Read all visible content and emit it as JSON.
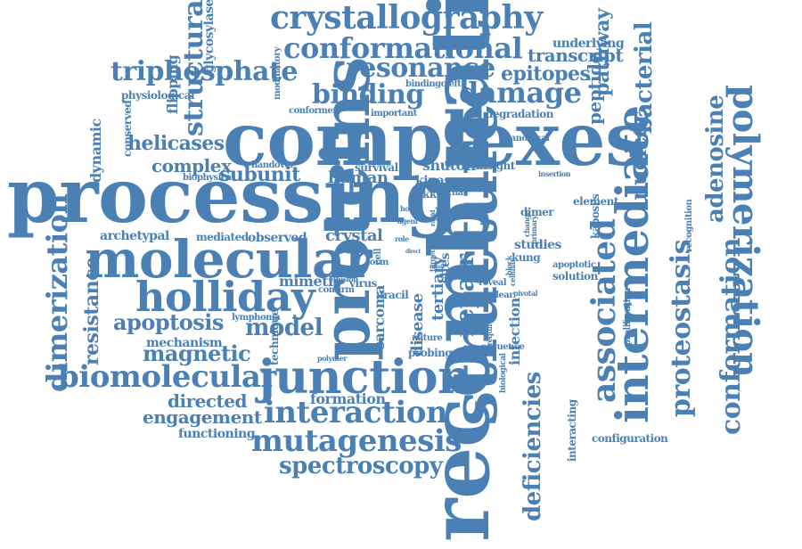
{
  "color": "#4a80b4",
  "words": [
    {
      "id": "recombination",
      "text": "recombination",
      "rot": "up",
      "weight": 10
    },
    {
      "id": "processing",
      "text": "processing",
      "rot": "h",
      "weight": 9
    },
    {
      "id": "complexes",
      "text": "complexes",
      "rot": "h",
      "weight": 9
    },
    {
      "id": "proteins",
      "text": "proteins",
      "rot": "up",
      "weight": 8
    },
    {
      "id": "structure",
      "text": "structure",
      "rot": "up",
      "weight": 8
    },
    {
      "id": "molecular",
      "text": "molecular",
      "rot": "h",
      "weight": 7
    },
    {
      "id": "junction",
      "text": "junction",
      "rot": "h",
      "weight": 6
    },
    {
      "id": "holliday",
      "text": "holliday",
      "rot": "h",
      "weight": 6
    },
    {
      "id": "intermediate",
      "text": "intermediate",
      "rot": "up",
      "weight": 6
    },
    {
      "id": "polymerization",
      "text": "polymerization",
      "rot": "down",
      "weight": 5
    },
    {
      "id": "crystallography",
      "text": "crystallography",
      "rot": "h",
      "weight": 5
    },
    {
      "id": "conformational",
      "text": "conformational",
      "rot": "h",
      "weight": 5
    },
    {
      "id": "dimerization",
      "text": "dimerization",
      "rot": "up",
      "weight": 5
    },
    {
      "id": "associated",
      "text": "associated",
      "rot": "up",
      "weight": 5
    },
    {
      "id": "conformation",
      "text": "conformation",
      "rot": "up",
      "weight": 4
    },
    {
      "id": "proteostasis",
      "text": "proteostasis",
      "rot": "up",
      "weight": 4
    },
    {
      "id": "mutagenesis",
      "text": "mutagenesis",
      "rot": "h",
      "weight": 4
    },
    {
      "id": "interaction",
      "text": "interaction",
      "rot": "h",
      "weight": 4
    },
    {
      "id": "biomolecular",
      "text": "biomolecular",
      "rot": "h",
      "weight": 4
    },
    {
      "id": "binding",
      "text": "binding",
      "rot": "h",
      "weight": 4
    },
    {
      "id": "damage",
      "text": "damage",
      "rot": "h",
      "weight": 4
    },
    {
      "id": "resonance",
      "text": "resonance",
      "rot": "h",
      "weight": 4
    },
    {
      "id": "triphosphate",
      "text": "triphosphate",
      "rot": "h",
      "weight": 4
    },
    {
      "id": "structural",
      "text": "structural",
      "rot": "up",
      "weight": 4
    },
    {
      "id": "deficiencies",
      "text": "deficiencies",
      "rot": "up",
      "weight": 3
    },
    {
      "id": "adenosine",
      "text": "adenosine",
      "rot": "up",
      "weight": 3
    },
    {
      "id": "spectroscopy",
      "text": "spectroscopy",
      "rot": "h",
      "weight": 3
    },
    {
      "id": "apoptosis",
      "text": "apoptosis",
      "rot": "h",
      "weight": 3
    },
    {
      "id": "magnetic",
      "text": "magnetic",
      "rot": "h",
      "weight": 3
    },
    {
      "id": "model",
      "text": "model",
      "rot": "h",
      "weight": 3
    },
    {
      "id": "repair",
      "text": "repair",
      "rot": "up",
      "weight": 3
    },
    {
      "id": "bacterial",
      "text": "bacterial",
      "rot": "up",
      "weight": 3
    },
    {
      "id": "nuclear",
      "text": "nuclear",
      "rot": "up",
      "weight": 3
    },
    {
      "id": "epitopes",
      "text": "epitopes",
      "rot": "h",
      "weight": 3
    },
    {
      "id": "pathway",
      "text": "pathway",
      "rot": "up",
      "weight": 3
    },
    {
      "id": "transcript",
      "text": "transcript",
      "rot": "h",
      "weight": 3
    },
    {
      "id": "helicases",
      "text": "helicases",
      "rot": "h",
      "weight": 3
    },
    {
      "id": "subunit",
      "text": "subunit",
      "rot": "h",
      "weight": 3
    },
    {
      "id": "resistance",
      "text": "resistance",
      "rot": "up",
      "weight": 3
    },
    {
      "id": "peptide",
      "text": "peptide",
      "rot": "up",
      "weight": 3
    },
    {
      "id": "complex",
      "text": "complex",
      "rot": "h",
      "weight": 3
    },
    {
      "id": "directed",
      "text": "directed",
      "rot": "h",
      "weight": 2
    },
    {
      "id": "engagement",
      "text": "engagement",
      "rot": "h",
      "weight": 2
    },
    {
      "id": "infection",
      "text": "infection",
      "rot": "up",
      "weight": 2
    },
    {
      "id": "disease",
      "text": "disease",
      "rot": "up",
      "weight": 2
    },
    {
      "id": "tertiary",
      "text": "tertiary",
      "rot": "up",
      "weight": 2
    },
    {
      "id": "sarcoma",
      "text": "sarcoma",
      "rot": "up",
      "weight": 2
    },
    {
      "id": "human",
      "text": "human",
      "rot": "h",
      "weight": 2
    },
    {
      "id": "crystal",
      "text": "crystal",
      "rot": "h",
      "weight": 2
    },
    {
      "id": "formation",
      "text": "formation",
      "rot": "h",
      "weight": 2
    },
    {
      "id": "functioning",
      "text": "functioning",
      "rot": "h",
      "weight": 2
    },
    {
      "id": "underlying",
      "text": "underlying",
      "rot": "h",
      "weight": 2
    },
    {
      "id": "glycosylases",
      "text": "glycosylases",
      "rot": "up",
      "weight": 2
    },
    {
      "id": "flipping",
      "text": "flipping",
      "rot": "up",
      "weight": 2
    },
    {
      "id": "dynamic",
      "text": "dynamic",
      "rot": "up",
      "weight": 2
    },
    {
      "id": "archetypal",
      "text": "archetypal",
      "rot": "h",
      "weight": 2
    },
    {
      "id": "mediated",
      "text": "mediated",
      "rot": "h",
      "weight": 2
    },
    {
      "id": "observed",
      "text": "observed",
      "rot": "h",
      "weight": 2
    },
    {
      "id": "mimetic",
      "text": "mimetic",
      "rot": "h",
      "weight": 2
    },
    {
      "id": "shutoff",
      "text": "shutoff",
      "rot": "h",
      "weight": 2
    },
    {
      "id": "kinase",
      "text": "kinase",
      "rot": "h",
      "weight": 2
    },
    {
      "id": "ikky",
      "text": "ikky",
      "rot": "h",
      "weight": 2
    },
    {
      "id": "insight",
      "text": "insight",
      "rot": "h",
      "weight": 2
    },
    {
      "id": "studies",
      "text": "studies",
      "rot": "h",
      "weight": 2
    },
    {
      "id": "mechanism",
      "text": "mechanism",
      "rot": "h",
      "weight": 2
    },
    {
      "id": "technique",
      "text": "technique",
      "rot": "up",
      "weight": 2
    },
    {
      "id": "kaposis",
      "text": "kaposi's",
      "rot": "up",
      "weight": 2
    },
    {
      "id": "sites",
      "text": "sites",
      "rot": "up",
      "weight": 2
    },
    {
      "id": "element",
      "text": "element",
      "rot": "h",
      "weight": 1
    },
    {
      "id": "solution",
      "text": "solution",
      "rot": "h",
      "weight": 1
    },
    {
      "id": "virus",
      "text": "virus",
      "rot": "h",
      "weight": 1
    },
    {
      "id": "uracil",
      "text": "uracil",
      "rot": "h",
      "weight": 1
    },
    {
      "id": "kung",
      "text": "kung",
      "rot": "h",
      "weight": 1
    },
    {
      "id": "dimer",
      "text": "dimer",
      "rot": "h",
      "weight": 1
    },
    {
      "id": "probing",
      "text": "probing",
      "rot": "h",
      "weight": 1
    },
    {
      "id": "sequence",
      "text": "sequence",
      "rot": "h",
      "weight": 1
    },
    {
      "id": "configuration",
      "text": "configuration",
      "rot": "h",
      "weight": 1
    },
    {
      "id": "interacting",
      "text": "interacting",
      "rot": "up",
      "weight": 1
    },
    {
      "id": "apoptotic",
      "text": "apoptotic",
      "rot": "h",
      "weight": 1
    },
    {
      "id": "degradation",
      "text": "degradation",
      "rot": "h",
      "weight": 1
    },
    {
      "id": "canonical",
      "text": "canonical",
      "rot": "h",
      "weight": 1
    },
    {
      "id": "survival",
      "text": "survival",
      "rot": "h",
      "weight": 1
    },
    {
      "id": "physiological",
      "text": "physiological",
      "rot": "h",
      "weight": 1
    },
    {
      "id": "conserved",
      "text": "conserved",
      "rot": "up",
      "weight": 1
    },
    {
      "id": "conformer",
      "text": "conformer",
      "rot": "h",
      "weight": 1
    },
    {
      "id": "important",
      "text": "important",
      "rot": "h",
      "weight": 1
    },
    {
      "id": "modulatory",
      "text": "modulatory",
      "rot": "up",
      "weight": 1
    },
    {
      "id": "bindingcleft",
      "text": "bindingcleft",
      "rot": "h",
      "weight": 1
    },
    {
      "id": "handover",
      "text": "handover",
      "rot": "h",
      "weight": 1
    },
    {
      "id": "biophysical",
      "text": "biophysical",
      "rot": "h",
      "weight": 1
    },
    {
      "id": "lymphoma",
      "text": "lymphoma",
      "rot": "h",
      "weight": 1
    },
    {
      "id": "confirm",
      "text": "confirm",
      "rot": "h",
      "weight": 1
    },
    {
      "id": "effusion",
      "text": "effusion",
      "rot": "h",
      "weight": 1
    },
    {
      "id": "polymer",
      "text": "polymer",
      "rot": "h",
      "weight": 1
    },
    {
      "id": "nature",
      "text": "nature",
      "rot": "h",
      "weight": 1
    },
    {
      "id": "role",
      "text": "role",
      "rot": "h",
      "weight": 1
    },
    {
      "id": "form",
      "text": "form",
      "rot": "h",
      "weight": 1
    },
    {
      "id": "cell",
      "text": "cell",
      "rot": "up",
      "weight": 1
    },
    {
      "id": "elicit",
      "text": "elicit",
      "rot": "up",
      "weight": 1
    },
    {
      "id": "motif",
      "text": "motif",
      "rot": "h",
      "weight": 1
    },
    {
      "id": "mrna",
      "text": "mrna",
      "rot": "h",
      "weight": 1
    },
    {
      "id": "death",
      "text": "death",
      "rot": "h",
      "weight": 1
    },
    {
      "id": "reveal",
      "text": "reveal",
      "rot": "h",
      "weight": 1
    },
    {
      "id": "unclear",
      "text": "unclear",
      "rot": "h",
      "weight": 1
    },
    {
      "id": "pivotal",
      "text": "pivotal",
      "rot": "h",
      "weight": 1
    },
    {
      "id": "block",
      "text": "block",
      "rot": "up",
      "weight": 1
    },
    {
      "id": "cellular",
      "text": "cellular",
      "rot": "up",
      "weight": 1
    },
    {
      "id": "insertion",
      "text": "insertion",
      "rot": "h",
      "weight": 1
    },
    {
      "id": "recognition",
      "text": "recognition",
      "rot": "up",
      "weight": 1
    },
    {
      "id": "proliferation",
      "text": "proliferation",
      "rot": "up",
      "weight": 1
    },
    {
      "id": "biological",
      "text": "biological",
      "rot": "up",
      "weight": 1
    },
    {
      "id": "require",
      "text": "require",
      "rot": "up",
      "weight": 1
    },
    {
      "id": "primary",
      "text": "primary",
      "rot": "up",
      "weight": 1
    },
    {
      "id": "change",
      "text": "change",
      "rot": "up",
      "weight": 1
    },
    {
      "id": "host",
      "text": "host",
      "rot": "h",
      "weight": 1
    },
    {
      "id": "agent",
      "text": "agent",
      "rot": "h",
      "weight": 1
    },
    {
      "id": "target",
      "text": "target",
      "rot": "up",
      "weight": 1
    },
    {
      "id": "result",
      "text": "result",
      "rot": "h",
      "weight": 1
    },
    {
      "id": "direct",
      "text": "direct",
      "rot": "h",
      "weight": 1
    },
    {
      "id": "rapid",
      "text": "rapid",
      "rot": "up",
      "weight": 1
    },
    {
      "id": "bind",
      "text": "bind",
      "rot": "up",
      "weight": 1
    }
  ]
}
